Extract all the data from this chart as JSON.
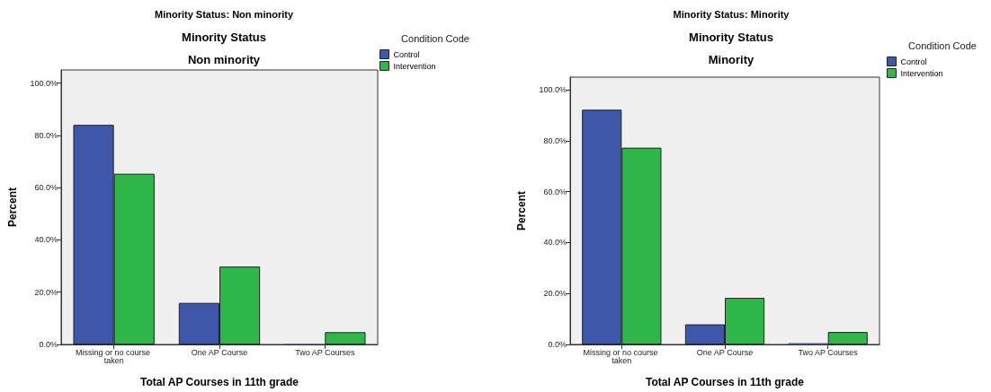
{
  "chart_data": [
    {
      "type": "bar",
      "title": "Minority Status: Non minority",
      "subtitle": "Minority Status\nNon minority",
      "xlabel": "Total AP Courses in 11th grade",
      "ylabel": "Percent",
      "legend_title": "Condition Code",
      "legend": "top right",
      "grid": false,
      "categories": [
        "Missing or no course taken",
        "One AP Course",
        "Two AP Courses"
      ],
      "series": [
        {
          "name": "Control",
          "color": "#3f57a8",
          "values": [
            84.0,
            15.9,
            0.2
          ]
        },
        {
          "name": "Intervention",
          "color": "#2fb84a",
          "values": [
            65.3,
            29.8,
            4.7
          ]
        }
      ],
      "ylim": [
        0,
        105
      ],
      "yticks": [
        {
          "value": 0,
          "label": "0.0%"
        },
        {
          "value": 20,
          "label": "20.0%"
        },
        {
          "value": 40,
          "label": "40.0%"
        },
        {
          "value": 60,
          "label": "60.0%"
        },
        {
          "value": 80,
          "label": "80.0%"
        },
        {
          "value": 100,
          "label": "100.0%"
        }
      ]
    },
    {
      "type": "bar",
      "title": "Minority Status: Minority",
      "subtitle": "Minority Status\nMinority",
      "xlabel": "Total AP Courses in 11th grade",
      "ylabel": "Percent",
      "legend_title": "Condition Code",
      "legend": "top right",
      "grid": false,
      "categories": [
        "Missing or no course taken",
        "One AP Course",
        "Two AP Courses"
      ],
      "series": [
        {
          "name": "Control",
          "color": "#3f57a8",
          "values": [
            92.2,
            7.9,
            0.5
          ]
        },
        {
          "name": "Intervention",
          "color": "#2fb84a",
          "values": [
            77.3,
            18.3,
            4.9
          ]
        }
      ],
      "ylim": [
        0,
        105
      ],
      "yticks": [
        {
          "value": 0,
          "label": "0.0%"
        },
        {
          "value": 20,
          "label": "20.0%"
        },
        {
          "value": 40,
          "label": "40.0%"
        },
        {
          "value": 60,
          "label": "60.0%"
        },
        {
          "value": 80,
          "label": "80.0%"
        },
        {
          "value": 100,
          "label": "100.0%"
        }
      ]
    }
  ]
}
